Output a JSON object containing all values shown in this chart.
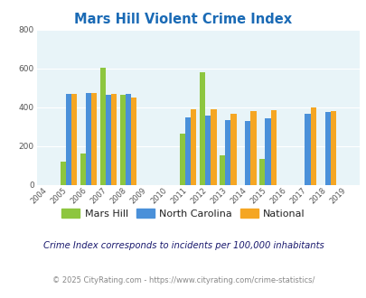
{
  "title": "Mars Hill Violent Crime Index",
  "years": [
    2004,
    2005,
    2006,
    2007,
    2008,
    2009,
    2010,
    2011,
    2012,
    2013,
    2014,
    2015,
    2016,
    2017,
    2018,
    2019
  ],
  "mars_hill": {
    "2005": 118,
    "2006": 163,
    "2007": 602,
    "2008": 465,
    "2011": 265,
    "2012": 583,
    "2013": 150,
    "2015": 133
  },
  "north_carolina": {
    "2005": 468,
    "2006": 472,
    "2007": 465,
    "2008": 468,
    "2011": 350,
    "2012": 355,
    "2013": 333,
    "2014": 328,
    "2015": 345,
    "2017": 365,
    "2018": 378
  },
  "national": {
    "2005": 469,
    "2006": 474,
    "2007": 467,
    "2008": 452,
    "2011": 388,
    "2012": 388,
    "2013": 368,
    "2014": 380,
    "2015": 383,
    "2017": 400,
    "2018": 381
  },
  "bar_color_mars_hill": "#8dc63f",
  "bar_color_nc": "#4a90d9",
  "bar_color_national": "#f5a623",
  "ylim": [
    0,
    800
  ],
  "yticks": [
    0,
    200,
    400,
    600,
    800
  ],
  "bg_color": "#e8f4f8",
  "title_color": "#1a6ab5",
  "title_fontsize": 10.5,
  "legend_labels": [
    "Mars Hill",
    "North Carolina",
    "National"
  ],
  "subtitle": "Crime Index corresponds to incidents per 100,000 inhabitants",
  "footer": "© 2025 CityRating.com - https://www.cityrating.com/crime-statistics/",
  "bar_width": 0.28
}
